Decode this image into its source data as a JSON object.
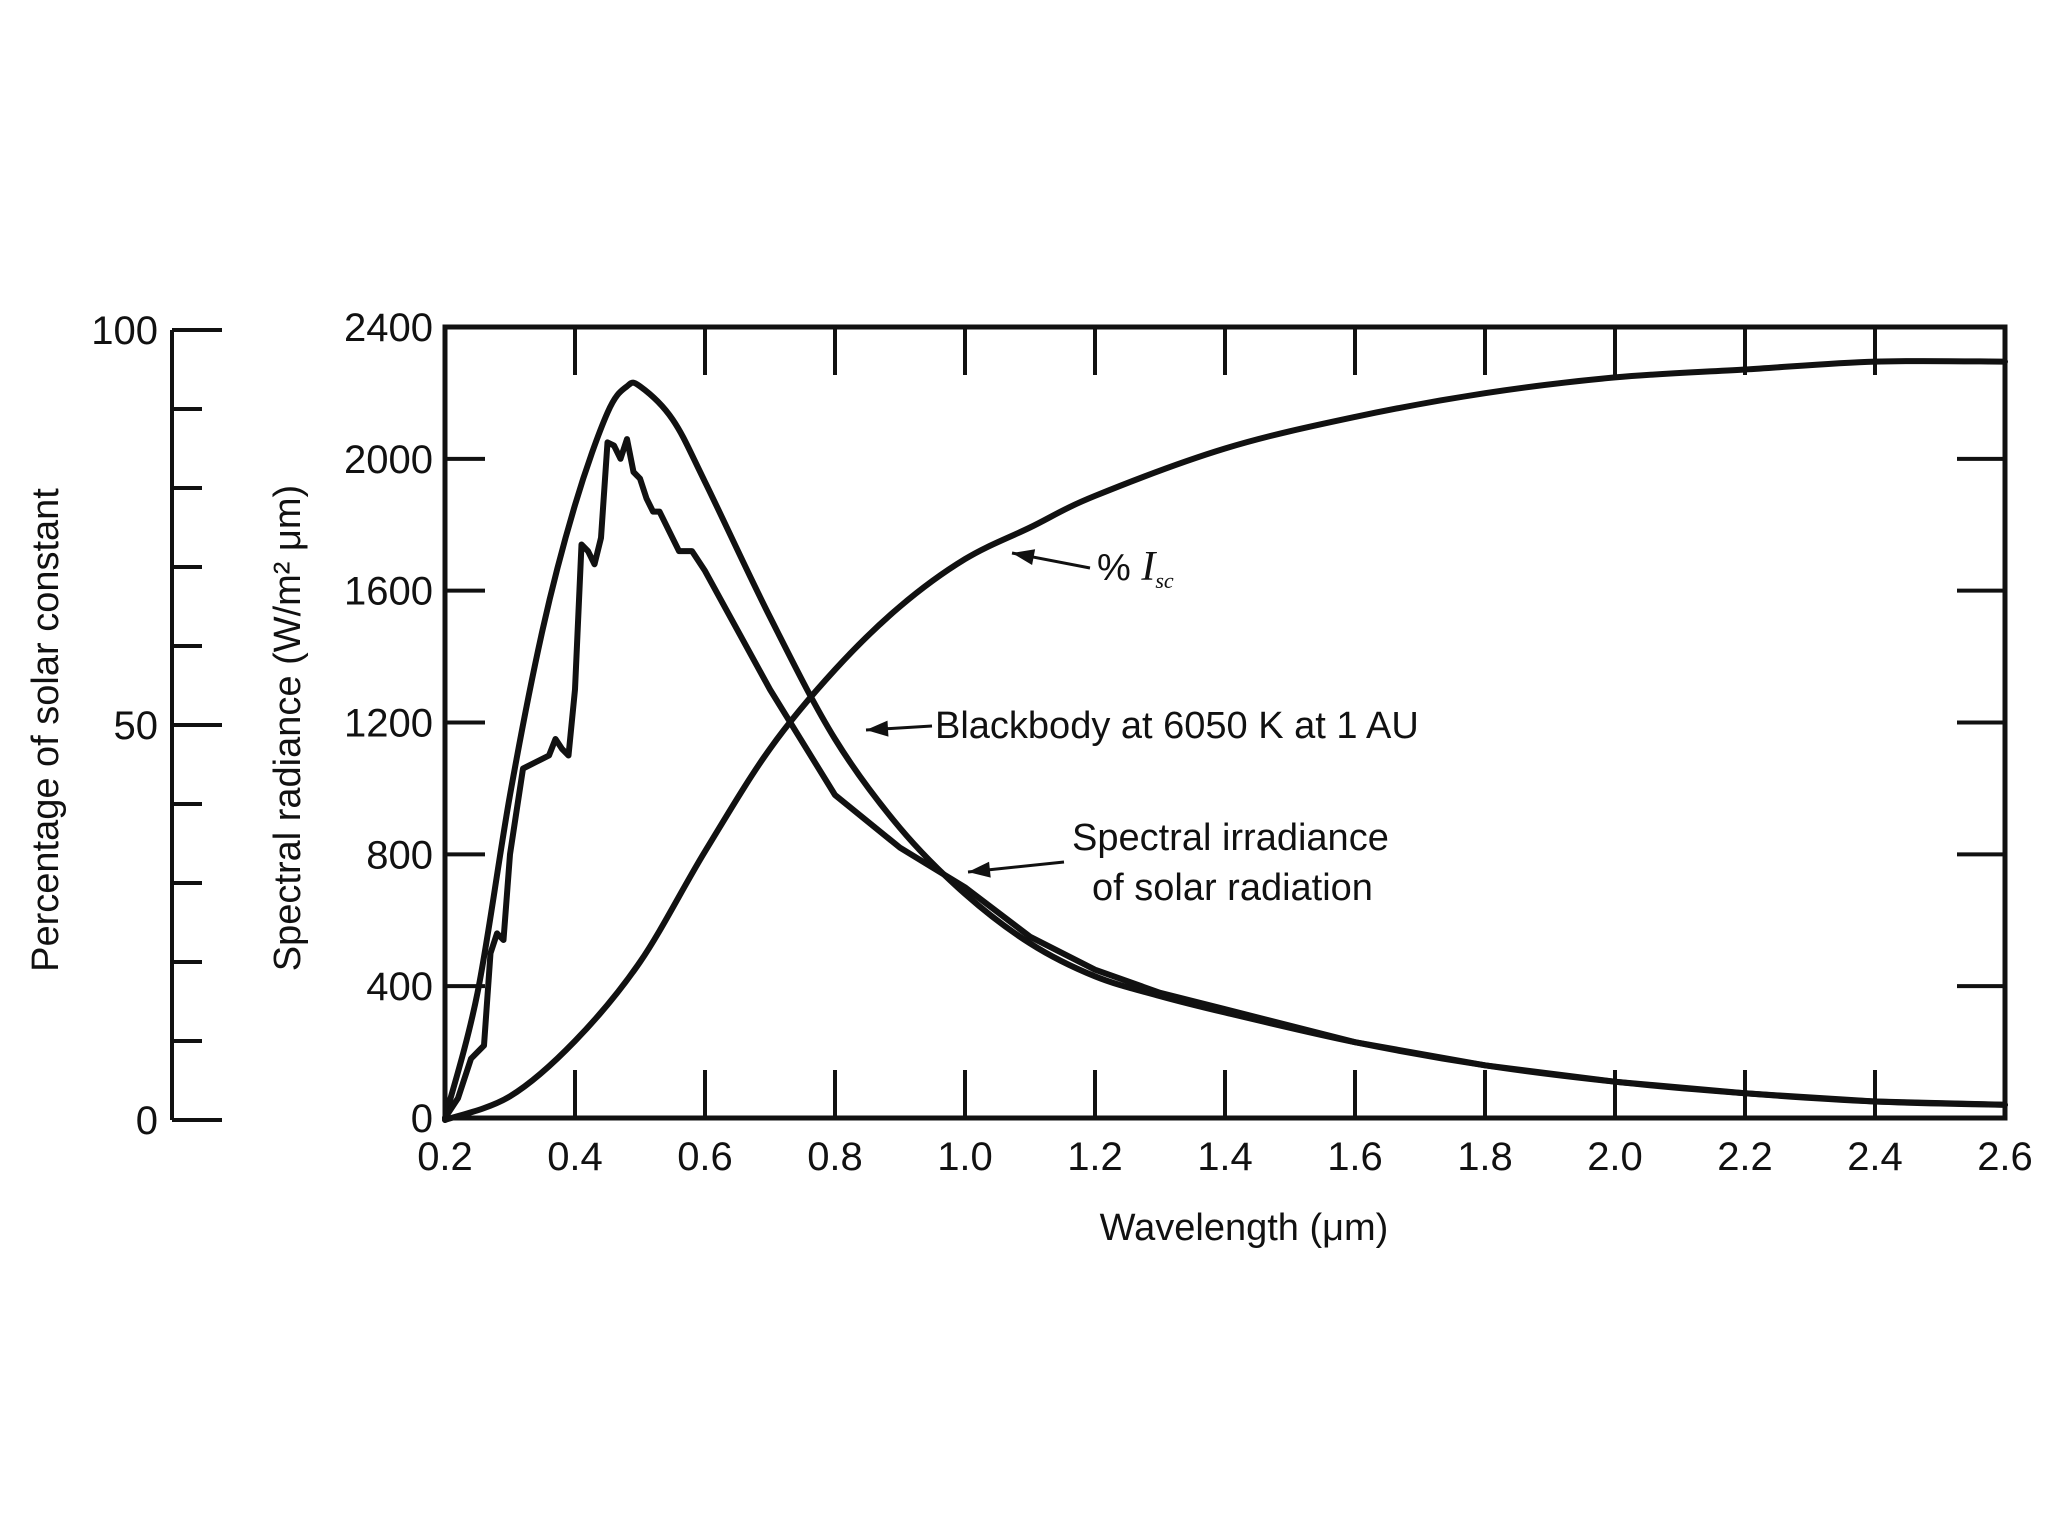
{
  "chart_data": {
    "type": "line",
    "xlabel": "Wavelength (μm)",
    "ylabel_left": "Spectral radiance (W/m² μm)",
    "ylabel_secondary": "Percentage of solar constant",
    "xlim": [
      0.2,
      2.6
    ],
    "ylim": [
      0,
      2400
    ],
    "secondary_ylim": [
      0,
      100
    ],
    "x_ticks": [
      "0.2",
      "0.4",
      "0.6",
      "0.8",
      "1.0",
      "1.2",
      "1.4",
      "1.6",
      "1.8",
      "2.0",
      "2.2",
      "2.4",
      "2.6"
    ],
    "y_ticks": [
      "0",
      "400",
      "800",
      "1200",
      "1600",
      "2000",
      "2400"
    ],
    "secondary_y_ticks": [
      "0",
      "50",
      "100"
    ],
    "grid": false,
    "colors": {
      "line": "#111111",
      "background": "#ffffff"
    },
    "series": [
      {
        "id": "blackbody",
        "axis": "left",
        "x": [
          0.2,
          0.25,
          0.3,
          0.35,
          0.4,
          0.45,
          0.48,
          0.5,
          0.55,
          0.6,
          0.7,
          0.8,
          0.9,
          1.0,
          1.1,
          1.2,
          1.3,
          1.4,
          1.6,
          1.8,
          2.0,
          2.2,
          2.4,
          2.6
        ],
        "y": [
          0,
          380,
          980,
          1480,
          1860,
          2140,
          2220,
          2220,
          2120,
          1930,
          1520,
          1150,
          880,
          680,
          530,
          430,
          370,
          320,
          230,
          160,
          110,
          75,
          50,
          40
        ]
      },
      {
        "id": "solar-irradiance",
        "axis": "left",
        "x": [
          0.2,
          0.22,
          0.24,
          0.26,
          0.27,
          0.28,
          0.29,
          0.3,
          0.32,
          0.34,
          0.36,
          0.37,
          0.38,
          0.39,
          0.4,
          0.41,
          0.42,
          0.43,
          0.44,
          0.45,
          0.46,
          0.47,
          0.48,
          0.49,
          0.5,
          0.51,
          0.52,
          0.53,
          0.55,
          0.56,
          0.58,
          0.6,
          0.7,
          0.8,
          0.9,
          1.0,
          1.1,
          1.2,
          1.3,
          1.4,
          1.6,
          1.8,
          2.0,
          2.2,
          2.4,
          2.6
        ],
        "y": [
          0,
          60,
          180,
          220,
          500,
          560,
          540,
          800,
          1060,
          1080,
          1100,
          1150,
          1120,
          1100,
          1300,
          1740,
          1720,
          1680,
          1760,
          2050,
          2040,
          2000,
          2060,
          1960,
          1940,
          1880,
          1840,
          1840,
          1760,
          1720,
          1720,
          1660,
          1300,
          980,
          820,
          700,
          550,
          450,
          380,
          330,
          230,
          160,
          110,
          75,
          50,
          40
        ]
      },
      {
        "id": "percent-isc",
        "axis": "secondary",
        "x": [
          0.2,
          0.3,
          0.4,
          0.5,
          0.6,
          0.7,
          0.8,
          0.9,
          1.0,
          1.1,
          1.2,
          1.4,
          1.6,
          1.8,
          2.0,
          2.2,
          2.4,
          2.6
        ],
        "y": [
          0,
          3,
          10,
          20,
          34,
          47,
          57,
          65,
          71,
          75,
          79,
          85,
          89,
          92,
          94,
          95,
          96,
          96
        ]
      }
    ],
    "annotations": [
      {
        "id": "percent-isc",
        "prefix": "% ",
        "symbol": "I",
        "subscript": "sc"
      },
      {
        "id": "blackbody",
        "text": "Blackbody at 6050 K at 1 AU"
      },
      {
        "id": "solar-irradiance",
        "lines": [
          "Spectral irradiance",
          "of solar radiation"
        ]
      }
    ]
  }
}
